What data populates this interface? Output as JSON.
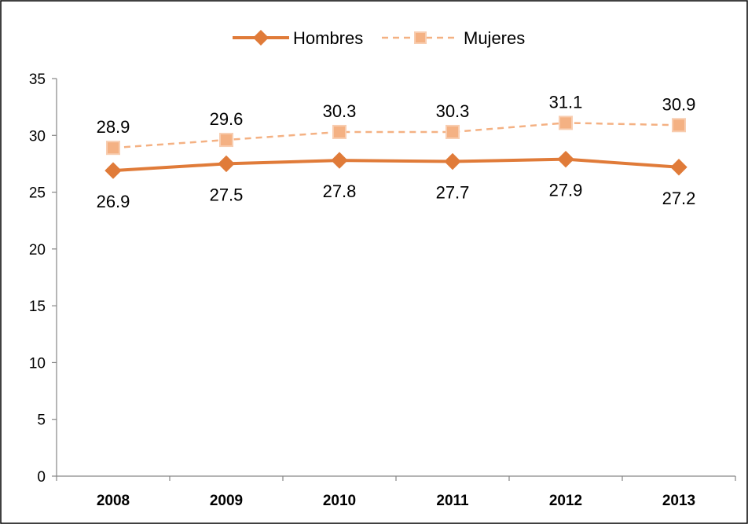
{
  "chart_data": {
    "type": "line",
    "title": "",
    "xlabel": "",
    "ylabel": "",
    "categories": [
      "2008",
      "2009",
      "2010",
      "2011",
      "2012",
      "2013"
    ],
    "ylim": [
      0,
      35
    ],
    "yticks": [
      0,
      5,
      10,
      15,
      20,
      25,
      30,
      35
    ],
    "grid": false,
    "legend_position": "top",
    "series": [
      {
        "name": "Hombres",
        "values": [
          26.9,
          27.5,
          27.8,
          27.7,
          27.9,
          27.2
        ],
        "labels": [
          "26.9",
          "27.5",
          "27.8",
          "27.7",
          "27.9",
          "27.2"
        ],
        "color": "#e07b39",
        "line_style": "solid",
        "marker": "diamond",
        "label_position": "below"
      },
      {
        "name": "Mujeres",
        "values": [
          28.9,
          29.6,
          30.3,
          30.3,
          31.1,
          30.9
        ],
        "labels": [
          "28.9",
          "29.6",
          "30.3",
          "30.3",
          "31.1",
          "30.9"
        ],
        "color": "#f4b183",
        "line_style": "dashed",
        "marker": "square",
        "label_position": "above"
      }
    ]
  }
}
